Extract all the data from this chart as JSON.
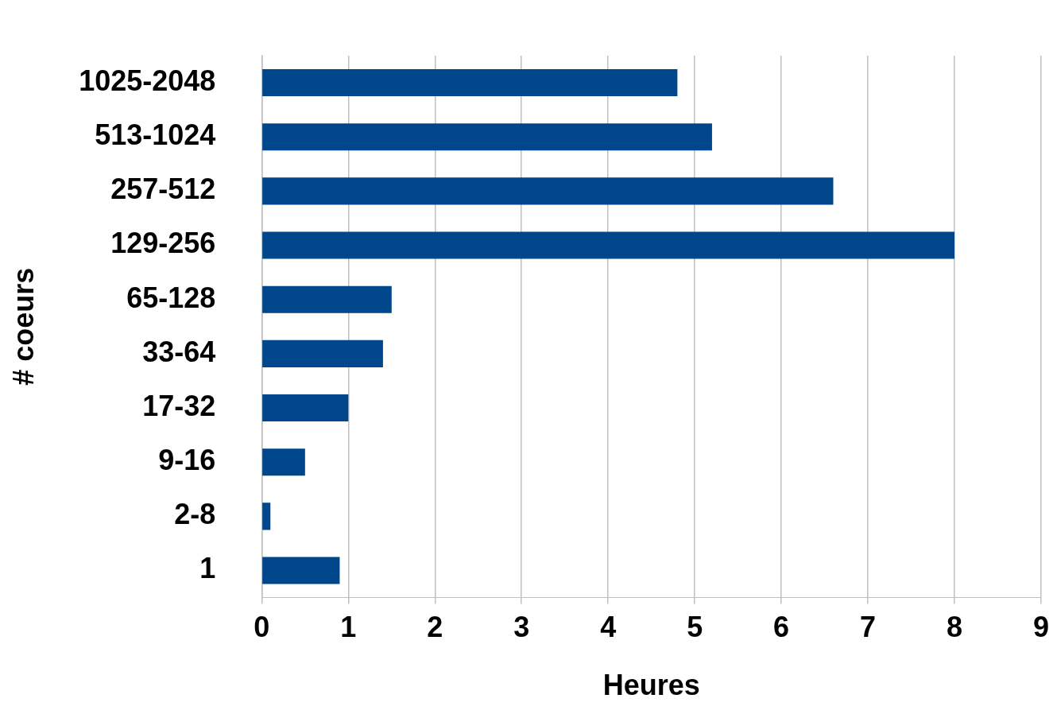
{
  "chart_data": {
    "type": "bar",
    "orientation": "horizontal",
    "xlabel": "Heures",
    "ylabel": "# coeurs",
    "categories": [
      "1025-2048",
      "513-1024",
      "257-512",
      "129-256",
      "65-128",
      "33-64",
      "17-32",
      "9-16",
      "2-8",
      "1"
    ],
    "values": [
      4.8,
      5.2,
      6.6,
      8.0,
      1.5,
      1.4,
      1.0,
      0.5,
      0.1,
      0.9
    ],
    "color": "#00468a",
    "xlim": [
      0,
      9
    ],
    "xticks": [
      0,
      1,
      2,
      3,
      4,
      5,
      6,
      7,
      8,
      9
    ],
    "grid": "x",
    "legend": false
  }
}
